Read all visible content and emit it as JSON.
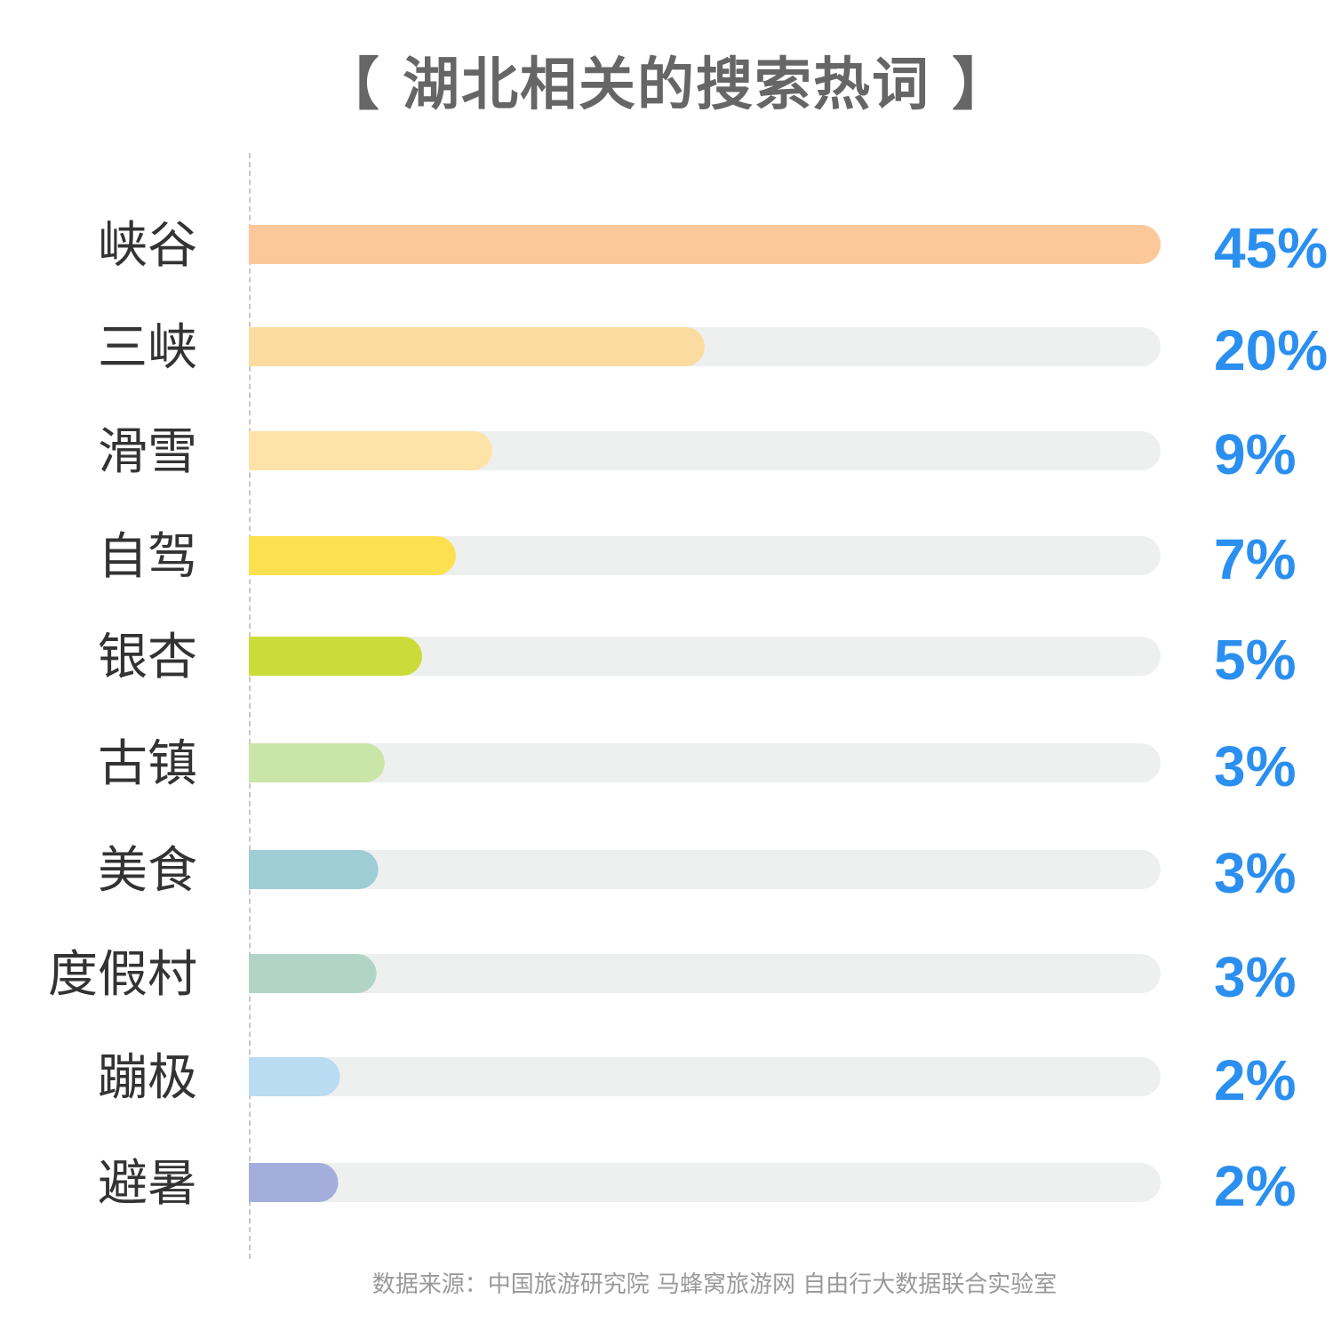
{
  "title": "【 湖北相关的搜索热词 】",
  "source": "数据来源：中国旅游研究院 马蜂窝旅游网 自由行大数据联合实验室",
  "colors": {
    "track": "#eef0ef",
    "value_text": "#2b8ff0",
    "label_text": "#333333"
  },
  "chart_data": {
    "type": "bar",
    "orientation": "horizontal",
    "categories": [
      "峡谷",
      "三峡",
      "滑雪",
      "自驾",
      "银杏",
      "古镇",
      "美食",
      "度假村",
      "蹦极",
      "避暑"
    ],
    "values": [
      45,
      20,
      9,
      7,
      5,
      3,
      3,
      3,
      2,
      2
    ],
    "value_labels": [
      "45%",
      "20%",
      "9%",
      "7%",
      "5%",
      "3%",
      "3%",
      "3%",
      "2%",
      "2%"
    ],
    "bar_fill_fraction": [
      1.0,
      0.5,
      0.267,
      0.227,
      0.19,
      0.149,
      0.142,
      0.14,
      0.1,
      0.098
    ],
    "bar_colors": [
      "#fdc899",
      "#fcdba0",
      "#fde3a8",
      "#fde050",
      "#cbdc3a",
      "#c9e6a8",
      "#9fcdd6",
      "#b2d4c6",
      "#b9dcf2",
      "#a4aedc"
    ],
    "unit": "%",
    "grid": false,
    "legend": "none"
  }
}
